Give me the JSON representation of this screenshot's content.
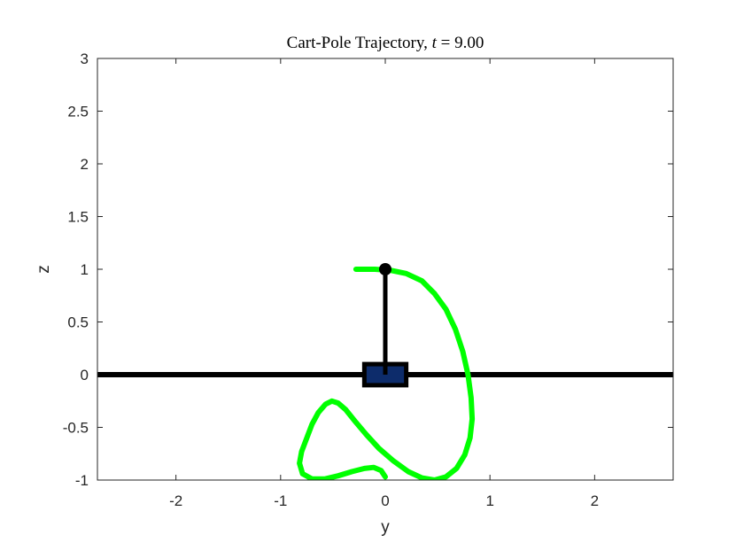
{
  "chart_data": {
    "type": "line",
    "title": {
      "prefix": "Cart-Pole Trajectory, ",
      "variable": "t",
      "equals": " = ",
      "value": "9.00"
    },
    "xlabel": "y",
    "ylabel": "z",
    "xlim": [
      -2.75,
      2.75
    ],
    "ylim": [
      -1,
      3
    ],
    "x_ticks": [
      -2,
      -1,
      0,
      1,
      2
    ],
    "x_tick_labels": [
      "-2",
      "-1",
      "0",
      "1",
      "2"
    ],
    "y_ticks": [
      -1,
      -0.5,
      0,
      0.5,
      1,
      1.5,
      2,
      2.5,
      3
    ],
    "y_tick_labels": [
      "-1",
      "-0.5",
      "0",
      "0.5",
      "1",
      "1.5",
      "2",
      "2.5",
      "3"
    ],
    "grid": false,
    "track": {
      "z": 0,
      "color": "#000000"
    },
    "cart": {
      "y": 0,
      "z": 0,
      "width": 0.4,
      "height": 0.2,
      "fill": "#0d2c6b",
      "edge": "#000000"
    },
    "pole": {
      "y0": 0,
      "z0": 0,
      "y1": 0,
      "z1": 1,
      "color": "#000000"
    },
    "bob": {
      "y": 0,
      "z": 1,
      "color": "#000000"
    },
    "trajectory": {
      "color": "#00ff00",
      "points": [
        [
          -0.28,
          1.0
        ],
        [
          -0.1,
          1.0
        ],
        [
          0.05,
          0.99
        ],
        [
          0.2,
          0.96
        ],
        [
          0.35,
          0.89
        ],
        [
          0.47,
          0.77
        ],
        [
          0.58,
          0.62
        ],
        [
          0.67,
          0.43
        ],
        [
          0.74,
          0.22
        ],
        [
          0.79,
          0.0
        ],
        [
          0.82,
          -0.22
        ],
        [
          0.83,
          -0.42
        ],
        [
          0.81,
          -0.6
        ],
        [
          0.76,
          -0.76
        ],
        [
          0.68,
          -0.89
        ],
        [
          0.58,
          -0.97
        ],
        [
          0.47,
          -1.0
        ],
        [
          0.35,
          -0.98
        ],
        [
          0.22,
          -0.92
        ],
        [
          0.08,
          -0.82
        ],
        [
          -0.06,
          -0.7
        ],
        [
          -0.18,
          -0.57
        ],
        [
          -0.29,
          -0.44
        ],
        [
          -0.38,
          -0.33
        ],
        [
          -0.45,
          -0.27
        ],
        [
          -0.51,
          -0.25
        ],
        [
          -0.57,
          -0.28
        ],
        [
          -0.64,
          -0.36
        ],
        [
          -0.7,
          -0.47
        ],
        [
          -0.75,
          -0.6
        ],
        [
          -0.8,
          -0.73
        ],
        [
          -0.82,
          -0.84
        ],
        [
          -0.79,
          -0.94
        ],
        [
          -0.7,
          -0.99
        ],
        [
          -0.58,
          -0.99
        ],
        [
          -0.45,
          -0.96
        ],
        [
          -0.32,
          -0.92
        ],
        [
          -0.2,
          -0.89
        ],
        [
          -0.11,
          -0.88
        ],
        [
          -0.04,
          -0.91
        ],
        [
          0.0,
          -0.97
        ]
      ]
    }
  }
}
